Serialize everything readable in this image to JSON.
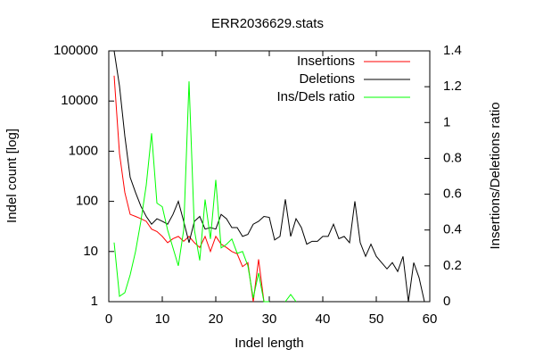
{
  "chart_data": {
    "type": "line",
    "title": "ERR2036629.stats",
    "xlabel": "Indel length",
    "ylabel": "Indel count [log]",
    "y2label": "Insertions/Deletions ratio",
    "x": [
      1,
      2,
      3,
      4,
      5,
      6,
      7,
      8,
      9,
      10,
      11,
      12,
      13,
      14,
      15,
      16,
      17,
      18,
      19,
      20,
      21,
      22,
      23,
      24,
      25,
      26,
      27,
      28,
      29,
      30,
      31,
      32,
      33,
      34,
      35,
      36,
      37,
      38,
      39,
      40,
      41,
      42,
      43,
      44,
      45,
      46,
      47,
      48,
      49,
      50,
      51,
      52,
      53,
      54,
      55,
      56,
      57,
      58,
      59
    ],
    "series": [
      {
        "name": "Insertions",
        "color": "#ff0000",
        "values": [
          32000,
          900,
          150,
          55,
          50,
          45,
          40,
          28,
          25,
          20,
          15,
          18,
          20,
          16,
          20,
          15,
          12,
          20,
          10,
          20,
          14,
          12,
          10,
          9,
          5,
          6,
          1,
          7,
          1,
          1,
          null,
          null,
          null,
          null,
          null,
          null,
          null,
          null,
          null,
          null,
          null,
          null,
          null,
          null,
          null,
          null,
          null,
          null,
          null,
          null,
          null,
          null,
          null,
          null,
          null,
          null,
          null,
          null,
          null
        ]
      },
      {
        "name": "Deletions",
        "color": "#000000",
        "values": [
          100000,
          20000,
          2000,
          300,
          150,
          80,
          50,
          35,
          45,
          40,
          35,
          55,
          100,
          40,
          15,
          40,
          50,
          28,
          30,
          28,
          55,
          45,
          30,
          30,
          20,
          22,
          35,
          40,
          50,
          48,
          17,
          20,
          110,
          20,
          45,
          30,
          14,
          16,
          16,
          20,
          20,
          35,
          18,
          20,
          15,
          100,
          15,
          8,
          14,
          8,
          6,
          4.5,
          6,
          4,
          8,
          1,
          6,
          3,
          1
        ]
      },
      {
        "name": "Ins/Dels ratio",
        "color": "#00ff00",
        "axis": "y2",
        "values": [
          0.33,
          0.03,
          0.05,
          0.15,
          0.28,
          0.45,
          0.65,
          0.94,
          0.55,
          0.53,
          0.4,
          0.3,
          0.2,
          0.4,
          1.23,
          0.4,
          0.23,
          0.57,
          0.35,
          0.68,
          0.3,
          0.32,
          0.35,
          0.27,
          0.28,
          0.2,
          0.02,
          0.16,
          0,
          0,
          null,
          null,
          0,
          0.04,
          0,
          null,
          null,
          null,
          null,
          null,
          null,
          null,
          null,
          null,
          null,
          null,
          null,
          null,
          null,
          null,
          null,
          null,
          null,
          null,
          null,
          null,
          null,
          null,
          null
        ]
      }
    ],
    "xlim": [
      0,
      60
    ],
    "xticks": [
      0,
      10,
      20,
      30,
      40,
      50,
      60
    ],
    "ylim": [
      1,
      100000
    ],
    "yticks": [
      1,
      10,
      100,
      1000,
      10000,
      100000
    ],
    "ylog": true,
    "y2lim": [
      0,
      1.4
    ],
    "y2ticks": [
      0,
      0.2,
      0.4,
      0.6,
      0.8,
      1,
      1.2,
      1.4
    ],
    "grid": false,
    "legend": "top-right"
  }
}
